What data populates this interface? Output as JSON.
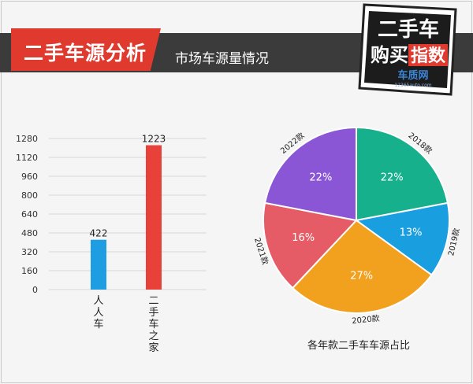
{
  "header": {
    "title": "二手车源分析",
    "subtitle": "市场车源量情况",
    "logo_text": "二手车购买指数",
    "logo_site": "车质网",
    "logo_url": "12365auto.com"
  },
  "colors": {
    "header_band": "#3b3b3b",
    "title_red": "#e03a2f",
    "bar_blue": "#1f9de3",
    "bar_red": "#e8413a"
  },
  "chart_data": [
    {
      "type": "bar",
      "categories": [
        "人人车",
        "二手车之家"
      ],
      "values": [
        422,
        1223
      ],
      "ylim": [
        0,
        1280
      ],
      "yticks": [
        0,
        160,
        320,
        480,
        640,
        800,
        960,
        1120,
        1280
      ],
      "grid": true,
      "colors": [
        "#1f9de3",
        "#e8413a"
      ]
    },
    {
      "type": "pie",
      "title": "各年款二手车车源占比",
      "labels": [
        "2018款",
        "2019款",
        "2020款",
        "2021款",
        "2022款"
      ],
      "values": [
        22,
        13,
        27,
        16,
        22
      ],
      "value_labels": [
        "22%",
        "13%",
        "27%",
        "16%",
        "22%"
      ],
      "colors": [
        "#16b08c",
        "#199ee0",
        "#f2a11f",
        "#e55c66",
        "#8a56d6"
      ]
    }
  ]
}
